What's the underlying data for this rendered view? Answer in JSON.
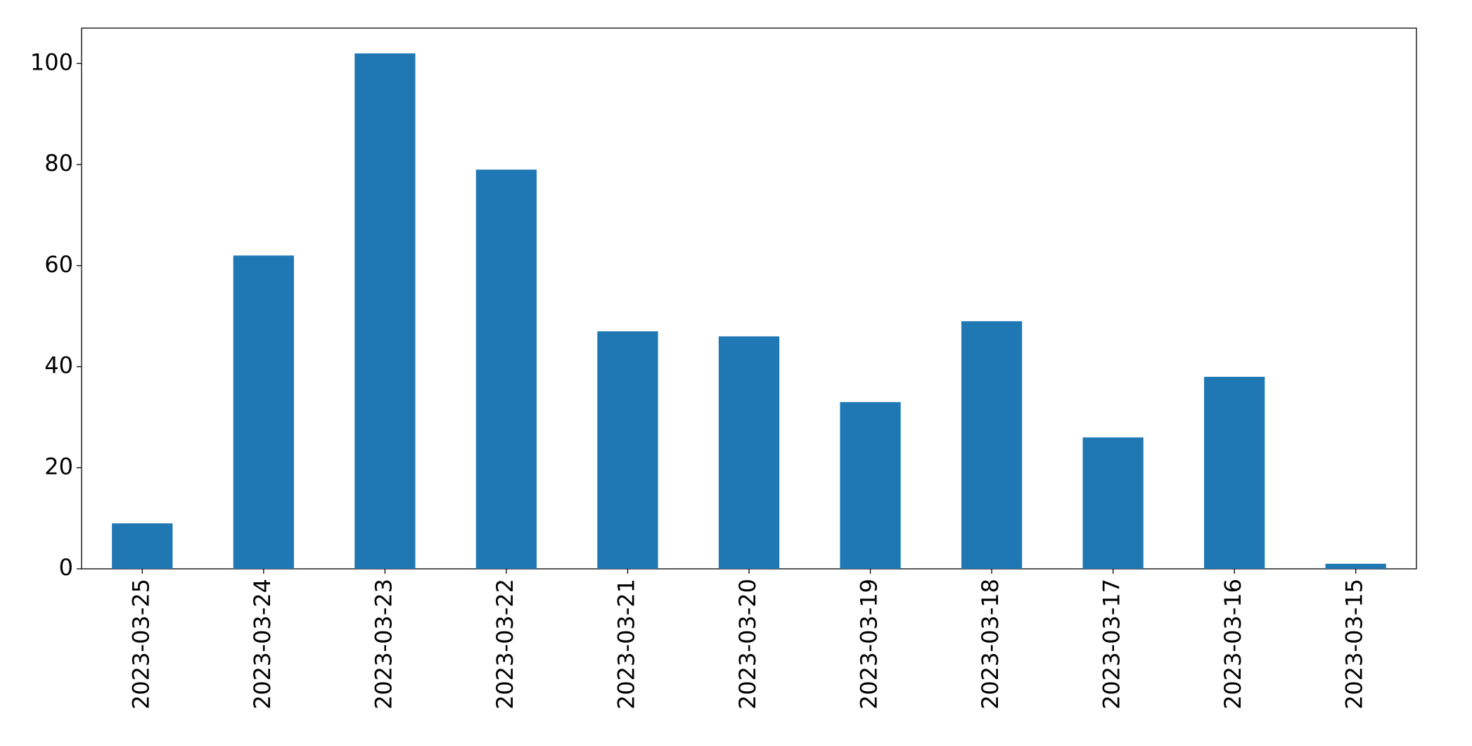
{
  "chart_data": {
    "type": "bar",
    "categories": [
      "2023-03-25",
      "2023-03-24",
      "2023-03-23",
      "2023-03-22",
      "2023-03-21",
      "2023-03-20",
      "2023-03-19",
      "2023-03-18",
      "2023-03-17",
      "2023-03-16",
      "2023-03-15"
    ],
    "values": [
      9,
      62,
      102,
      79,
      47,
      46,
      33,
      49,
      26,
      38,
      1
    ],
    "color": "#1f77b4",
    "ylim": [
      0,
      107
    ],
    "yticks": [
      0,
      20,
      40,
      60,
      80,
      100
    ],
    "grid": false
  }
}
